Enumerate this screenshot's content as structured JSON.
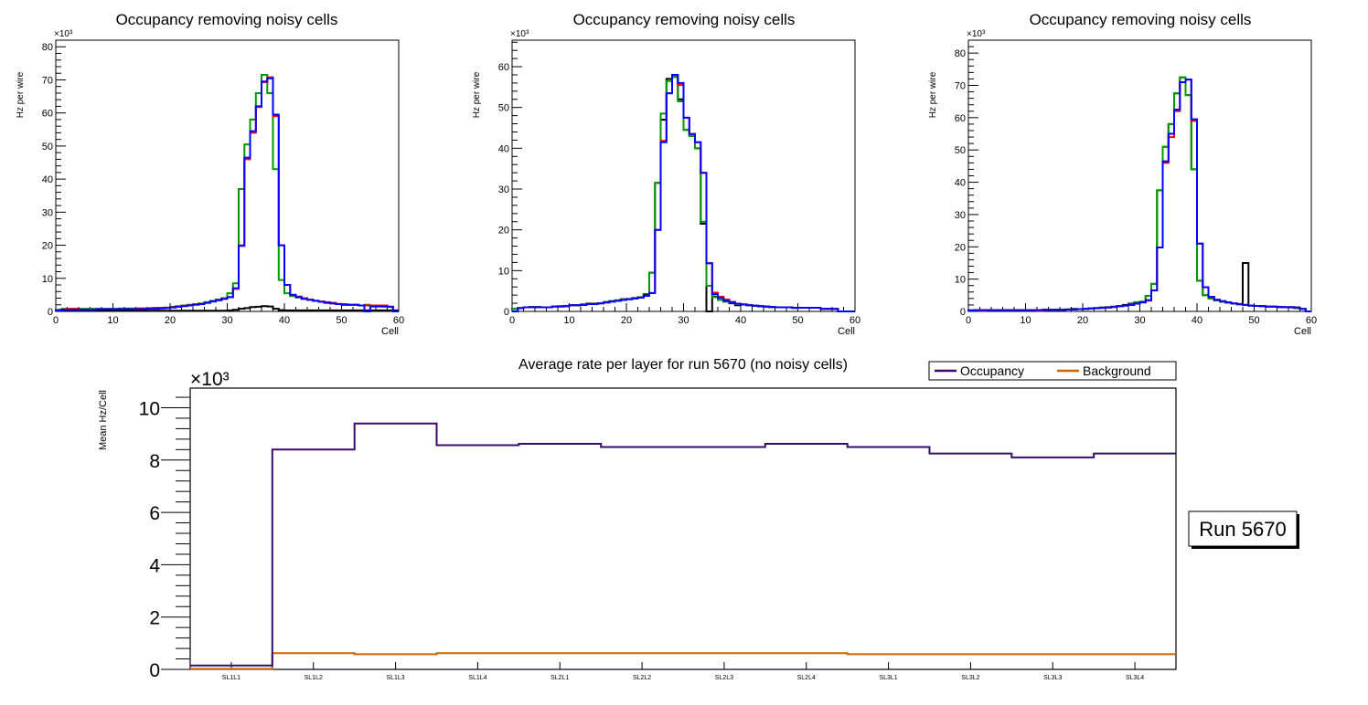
{
  "chart_data": [
    {
      "type": "line",
      "title": "Occupancy removing noisy cells",
      "xlabel": "Cell",
      "ylabel": "Hz per wire",
      "yexp": "×10³",
      "xlim": [
        0,
        60
      ],
      "ylim": [
        0,
        82
      ],
      "xticks": [
        0,
        10,
        20,
        30,
        40,
        50,
        60
      ],
      "yticks": [
        0,
        10,
        20,
        30,
        40,
        50,
        60,
        70,
        80
      ],
      "series": [
        {
          "name": "black",
          "color": "#000000",
          "values": [
            0.2,
            0.2,
            0.2,
            0.2,
            0.2,
            0.2,
            0.2,
            0.2,
            0.2,
            0.2,
            0.2,
            0.2,
            0.2,
            0.2,
            0.2,
            0.2,
            0.2,
            0.2,
            0.2,
            0.2,
            0.2,
            0.2,
            0.2,
            0.2,
            0.2,
            0.2,
            0.2,
            0.2,
            0.2,
            0.2,
            0.3,
            0.5,
            0.8,
            1.0,
            1.3,
            1.4,
            1.6,
            1.5,
            0.8,
            0.4,
            0.3,
            0.3,
            0.3,
            0.3,
            0.3,
            0.3,
            0.3,
            0.3,
            0.3,
            0.3,
            0.3,
            0.3,
            0.3,
            0.3,
            0.3,
            0.3,
            0.3,
            0.3,
            0.3,
            0.3
          ]
        },
        {
          "name": "green",
          "color": "#009900",
          "values": [
            0.5,
            0.8,
            0.8,
            0.8,
            0.8,
            0.8,
            0.8,
            0.8,
            0.8,
            0.8,
            0.8,
            0.9,
            0.9,
            0.9,
            0.9,
            0.9,
            1.0,
            1.0,
            1.1,
            1.2,
            1.4,
            1.6,
            1.8,
            2.0,
            2.2,
            2.4,
            2.8,
            3.2,
            3.6,
            4.0,
            5.5,
            8.5,
            37.0,
            50.5,
            58.0,
            66.0,
            71.5,
            66.0,
            43.0,
            9.5,
            5.5,
            4.6,
            4.2,
            3.8,
            3.5,
            3.2,
            2.9,
            2.6,
            2.4,
            2.2,
            2.0,
            2.0,
            2.0,
            1.8,
            2.0,
            1.8,
            1.8,
            1.5,
            1.4,
            0
          ]
        },
        {
          "name": "red",
          "color": "#ff0000",
          "values": [
            0.3,
            0.5,
            0.8,
            0.8,
            0.5,
            0.5,
            0.5,
            0.7,
            0.7,
            0.7,
            0.7,
            0.7,
            0.7,
            0.7,
            0.9,
            0.9,
            0.9,
            1.1,
            1.1,
            1.1,
            1.3,
            1.5,
            1.7,
            1.9,
            2.1,
            2.3,
            2.6,
            3.0,
            3.4,
            3.8,
            4.3,
            6.8,
            20.0,
            46.0,
            54.0,
            61.8,
            69.3,
            70.8,
            59.0,
            20.0,
            8.0,
            5.0,
            4.5,
            4.0,
            3.5,
            3.2,
            3.0,
            2.8,
            2.6,
            2.3,
            2.2,
            2.0,
            2.0,
            1.8,
            1.8,
            1.8,
            1.8,
            1.8,
            1.4,
            0
          ]
        },
        {
          "name": "blue",
          "color": "#0000ff",
          "values": [
            0.3,
            0.5,
            0.5,
            0.5,
            0.5,
            0.5,
            0.5,
            0.7,
            0.7,
            0.7,
            0.7,
            0.7,
            0.7,
            0.7,
            0.7,
            0.7,
            0.8,
            0.8,
            0.9,
            1.0,
            1.2,
            1.4,
            1.6,
            1.8,
            2.0,
            2.2,
            2.6,
            3.0,
            3.4,
            3.8,
            4.3,
            7.0,
            19.8,
            46.5,
            54.5,
            62.0,
            69.5,
            70.5,
            59.5,
            20.0,
            8.0,
            5.0,
            4.3,
            3.8,
            3.5,
            3.2,
            2.9,
            2.6,
            2.4,
            2.2,
            2.0,
            2.0,
            2.0,
            1.8,
            0,
            1.5,
            1.5,
            1.5,
            1.4,
            0
          ]
        }
      ]
    },
    {
      "type": "line",
      "title": "Occupancy removing noisy cells",
      "xlabel": "Cell",
      "ylabel": "Hz per wire",
      "yexp": "×10³",
      "xlim": [
        0,
        60
      ],
      "ylim": [
        0,
        66.5
      ],
      "xticks": [
        0,
        10,
        20,
        30,
        40,
        50,
        60
      ],
      "yticks": [
        0,
        10,
        20,
        30,
        40,
        50,
        60
      ],
      "series": [
        {
          "name": "black",
          "color": "#000000",
          "values": [
            0.6,
            0.8,
            1.0,
            1.1,
            1.1,
            1.0,
            1.0,
            1.2,
            1.3,
            1.3,
            1.5,
            1.5,
            1.7,
            1.9,
            1.9,
            2.0,
            2.3,
            2.5,
            2.7,
            3.0,
            3.0,
            3.2,
            3.4,
            4.2,
            9.5,
            31.5,
            47.0,
            57.0,
            57.5,
            52.0,
            44.5,
            43.0,
            40.0,
            21.5,
            0,
            3.6,
            2.8,
            2.4,
            2.0,
            1.5,
            1.7,
            1.5,
            1.4,
            1.3,
            1.2,
            1.1,
            1.0,
            1.0,
            1.0,
            0.9,
            0.9,
            0.9,
            0.9,
            0.9,
            0.6,
            0.6,
            0.6,
            0,
            0,
            0
          ]
        },
        {
          "name": "green",
          "color": "#009900",
          "values": [
            0.6,
            0.8,
            1.0,
            1.0,
            1.0,
            1.0,
            1.0,
            1.2,
            1.2,
            1.3,
            1.5,
            1.5,
            1.6,
            1.8,
            1.8,
            2.0,
            2.3,
            2.5,
            2.7,
            2.9,
            3.0,
            3.3,
            3.5,
            3.9,
            9.5,
            31.5,
            48.5,
            56.5,
            57.5,
            51.5,
            44.5,
            43.0,
            40.0,
            22.0,
            6.3,
            3.5,
            2.8,
            2.4,
            2.2,
            1.8,
            1.7,
            1.5,
            1.4,
            1.2,
            1.1,
            1.0,
            1.0,
            1.0,
            1.0,
            0.8,
            0.9,
            0.9,
            0.9,
            0.9,
            0.6,
            0.6,
            0.6,
            0,
            0,
            0
          ]
        },
        {
          "name": "red",
          "color": "#ff0000",
          "values": [
            0,
            0.8,
            1.0,
            1.0,
            1.0,
            1.0,
            1.0,
            1.2,
            1.2,
            1.3,
            1.5,
            1.5,
            1.6,
            1.8,
            1.8,
            2.0,
            2.2,
            2.4,
            2.6,
            2.8,
            3.1,
            3.2,
            3.4,
            3.8,
            4.5,
            20.0,
            41.8,
            53.5,
            58.0,
            55.5,
            47.5,
            43.5,
            41.5,
            34.0,
            11.8,
            4.6,
            3.6,
            2.9,
            2.3,
            1.9,
            1.7,
            1.6,
            1.4,
            1.3,
            1.2,
            1.1,
            1.0,
            1.0,
            1.0,
            0.9,
            0.9,
            0.9,
            0.9,
            0.9,
            0.6,
            0.6,
            0.6,
            0,
            0,
            0
          ]
        },
        {
          "name": "blue",
          "color": "#0000ff",
          "values": [
            0,
            0.8,
            1.0,
            1.0,
            1.0,
            1.0,
            1.0,
            1.2,
            1.2,
            1.3,
            1.5,
            1.5,
            1.6,
            1.8,
            1.8,
            2.0,
            2.2,
            2.4,
            2.6,
            2.8,
            3.0,
            3.2,
            3.4,
            3.8,
            4.5,
            20.0,
            41.5,
            53.5,
            58.0,
            56.0,
            47.5,
            43.5,
            41.5,
            34.0,
            11.8,
            4.2,
            3.3,
            2.6,
            2.3,
            1.9,
            1.7,
            1.5,
            1.4,
            1.3,
            1.2,
            1.1,
            1.0,
            1.0,
            1.0,
            0.9,
            0.9,
            0.9,
            0.9,
            0.9,
            0.6,
            0.6,
            0.6,
            0,
            0,
            0
          ]
        }
      ]
    },
    {
      "type": "line",
      "title": "Occupancy removing noisy cells",
      "xlabel": "Cell",
      "ylabel": "Hz per wire",
      "yexp": "×10³",
      "xlim": [
        0,
        60
      ],
      "ylim": [
        0,
        84
      ],
      "xticks": [
        0,
        10,
        20,
        30,
        40,
        50,
        60
      ],
      "yticks": [
        0,
        10,
        20,
        30,
        40,
        50,
        60,
        70,
        80
      ],
      "series": [
        {
          "name": "black",
          "color": "#000000",
          "values": [
            0.3,
            0.4,
            0.4,
            0.4,
            0.4,
            0.4,
            0.4,
            0.4,
            0.4,
            0.4,
            0.4,
            0.4,
            0.4,
            0.5,
            0.5,
            0.5,
            0.5,
            0.6,
            0.8,
            0.7,
            0.8,
            0.9,
            1.0,
            1.2,
            1.3,
            1.5,
            1.6,
            2.0,
            2.4,
            2.8,
            3.0,
            4.8,
            8.5,
            37.5,
            51.0,
            58.0,
            67.5,
            72.5,
            67.0,
            44.0,
            9.5,
            5.0,
            4.0,
            3.4,
            3.0,
            2.7,
            2.4,
            2.2,
            15.0,
            1.8,
            1.7,
            1.6,
            1.5,
            1.5,
            1.4,
            1.3,
            1.3,
            1.2,
            0.8,
            0
          ]
        },
        {
          "name": "green",
          "color": "#009900",
          "values": [
            0.3,
            0.4,
            0.4,
            0.4,
            0.4,
            0.4,
            0.4,
            0.4,
            0.4,
            0.4,
            0.4,
            0.4,
            0.4,
            0.5,
            0.5,
            0.5,
            0.5,
            0.6,
            0.6,
            0.7,
            0.8,
            0.9,
            1.1,
            1.2,
            1.3,
            1.4,
            1.6,
            1.8,
            2.2,
            2.8,
            3.0,
            4.8,
            8.5,
            37.5,
            51.0,
            58.0,
            67.5,
            72.5,
            67.0,
            44.0,
            9.5,
            5.0,
            4.0,
            3.4,
            3.0,
            2.7,
            2.4,
            2.2,
            2.0,
            1.8,
            1.7,
            1.6,
            1.5,
            1.5,
            1.3,
            1.3,
            1.2,
            1.0,
            0.8,
            0
          ]
        },
        {
          "name": "red",
          "color": "#ff0000",
          "values": [
            0.3,
            0.4,
            0.2,
            0.4,
            0.4,
            0.4,
            0.4,
            0.4,
            0.4,
            0.4,
            0.4,
            0.4,
            0.2,
            0.5,
            0.5,
            0.5,
            0.5,
            0.6,
            0.6,
            0.7,
            0.8,
            0.9,
            1.0,
            1.1,
            1.2,
            1.4,
            1.6,
            1.8,
            2.0,
            2.4,
            2.8,
            3.3,
            6.5,
            19.8,
            46.0,
            54.0,
            62.0,
            71.0,
            71.8,
            59.0,
            21.0,
            7.5,
            4.5,
            3.6,
            3.2,
            2.8,
            2.5,
            2.3,
            2.0,
            1.8,
            1.7,
            1.7,
            1.5,
            1.5,
            1.4,
            1.3,
            1.3,
            1.2,
            0.8,
            0
          ]
        },
        {
          "name": "blue",
          "color": "#0000ff",
          "values": [
            0.3,
            0.4,
            0.4,
            0.4,
            0.4,
            0.4,
            0.4,
            0.4,
            0.4,
            0.4,
            0.4,
            0.4,
            0.4,
            0.5,
            0.5,
            0.5,
            0.5,
            0.6,
            0.6,
            0.7,
            0.8,
            0.9,
            1.0,
            1.1,
            1.2,
            1.4,
            1.6,
            1.8,
            2.0,
            2.4,
            2.8,
            3.5,
            6.5,
            19.8,
            46.5,
            55.0,
            62.5,
            71.0,
            71.8,
            59.5,
            21.0,
            7.5,
            4.5,
            3.6,
            3.2,
            2.8,
            2.5,
            2.3,
            2.0,
            1.8,
            1.7,
            1.6,
            1.5,
            1.5,
            1.4,
            1.3,
            1.3,
            1.2,
            0.8,
            0
          ]
        }
      ]
    },
    {
      "type": "line",
      "title": "Average rate per layer for run 5670 (no noisy cells)",
      "xlabel": "",
      "ylabel": "Mean Hz/Cell",
      "yexp": "×10³",
      "ylim": [
        0,
        10.75
      ],
      "yticks": [
        0,
        2,
        4,
        6,
        8,
        10
      ],
      "categories": [
        "SL1L1",
        "SL1L2",
        "SL1L3",
        "SL1L4",
        "SL2L1",
        "SL2L2",
        "SL2L3",
        "SL2L4",
        "SL3L1",
        "SL3L2",
        "SL3L3",
        "SL3L4"
      ],
      "legend_position": "top-right",
      "series": [
        {
          "name": "Occupancy",
          "color": "#3b0a6e",
          "values": [
            0.15,
            8.4,
            9.4,
            8.57,
            8.62,
            8.5,
            8.5,
            8.62,
            8.5,
            8.25,
            8.1,
            8.25
          ]
        },
        {
          "name": "Background",
          "color": "#cc6600",
          "values": [
            0.02,
            0.62,
            0.58,
            0.62,
            0.62,
            0.62,
            0.62,
            0.62,
            0.58,
            0.58,
            0.58,
            0.58
          ]
        }
      ],
      "annotation": "Run 5670"
    }
  ]
}
